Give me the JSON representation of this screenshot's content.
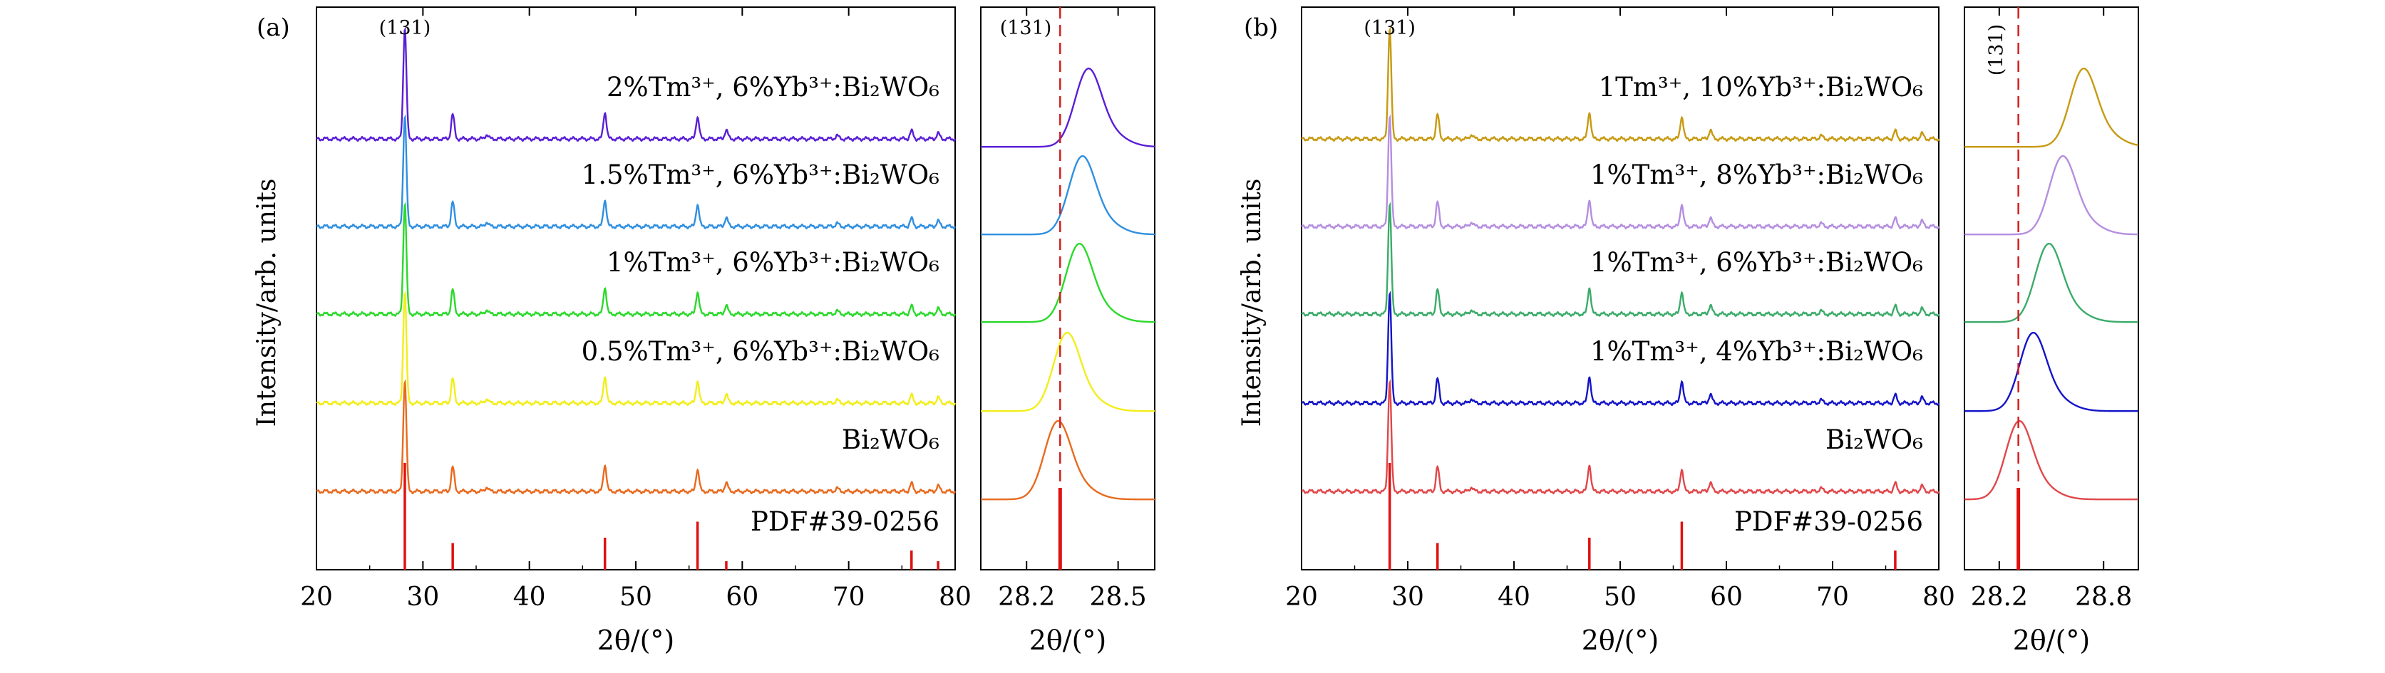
{
  "figure": {
    "ylabel": "Intensity/arb. units",
    "xlabel": "2θ/(°)"
  },
  "panels": [
    {
      "id": "a",
      "label": "(a)",
      "ref_label": "PDF#39-0256",
      "peak_label": "(131)",
      "main_xlim": [
        20,
        80
      ],
      "main_ticks": [
        20,
        30,
        40,
        50,
        60,
        70,
        80
      ],
      "zoom_xlim": [
        28.05,
        28.62
      ],
      "zoom_ticks": [
        28.2,
        28.5
      ],
      "zoom_ref_line": 28.31,
      "series": [
        {
          "name": "2%Tm³⁺, 6%Yb³⁺:Bi₂WO₆",
          "color": "#5a1ed6",
          "zoom_peak": 28.4
        },
        {
          "name": "1.5%Tm³⁺, 6%Yb³⁺:Bi₂WO₆",
          "color": "#2f8fe0",
          "zoom_peak": 28.38
        },
        {
          "name": "1%Tm³⁺, 6%Yb³⁺:Bi₂WO₆",
          "color": "#2bd92b",
          "zoom_peak": 28.37
        },
        {
          "name": "0.5%Tm³⁺, 6%Yb³⁺:Bi₂WO₆",
          "color": "#f2ee1a",
          "zoom_peak": 28.33
        },
        {
          "name": "Bi₂WO₆",
          "color": "#e86a1e",
          "zoom_peak": 28.3
        }
      ]
    },
    {
      "id": "b",
      "label": "(b)",
      "ref_label": "PDF#39-0256",
      "peak_label": "(131)",
      "main_xlim": [
        20,
        80
      ],
      "main_ticks": [
        20,
        30,
        40,
        50,
        60,
        70,
        80
      ],
      "zoom_xlim": [
        28.0,
        29.0
      ],
      "zoom_ticks": [
        28.2,
        28.8
      ],
      "zoom_ref_line": 28.31,
      "series": [
        {
          "name": "1Tm³⁺, 10%Yb³⁺:Bi₂WO₆",
          "color": "#c79a12",
          "zoom_peak": 28.68
        },
        {
          "name": "1%Tm³⁺, 8%Yb³⁺:Bi₂WO₆",
          "color": "#b58ee0",
          "zoom_peak": 28.56
        },
        {
          "name": "1%Tm³⁺, 6%Yb³⁺:Bi₂WO₆",
          "color": "#3bab6a",
          "zoom_peak": 28.48
        },
        {
          "name": "1%Tm³⁺, 4%Yb³⁺:Bi₂WO₆",
          "color": "#1414c8",
          "zoom_peak": 28.39
        },
        {
          "name": "Bi₂WO₆",
          "color": "#e0474a",
          "zoom_peak": 28.31
        }
      ]
    }
  ],
  "chart_data": [
    {
      "type": "line",
      "panel": "(a) main",
      "xlabel": "2θ/(°)",
      "ylabel": "Intensity/arb. units",
      "xlim": [
        20,
        80
      ],
      "reference": {
        "name": "PDF#39-0256",
        "peaks": [
          [
            28.3,
            1.0
          ],
          [
            32.8,
            0.25
          ],
          [
            47.1,
            0.3
          ],
          [
            55.8,
            0.45
          ],
          [
            58.5,
            0.08
          ],
          [
            75.9,
            0.18
          ],
          [
            78.4,
            0.08
          ]
        ]
      },
      "peak_positions": [
        28.3,
        32.8,
        36.0,
        47.1,
        55.8,
        58.5,
        68.9,
        75.9,
        78.4
      ],
      "series": [
        {
          "name": "2%Tm³⁺, 6%Yb³⁺:Bi₂WO₆"
        },
        {
          "name": "1.5%Tm³⁺, 6%Yb³⁺:Bi₂WO₆"
        },
        {
          "name": "1%Tm³⁺, 6%Yb³⁺:Bi₂WO₆"
        },
        {
          "name": "0.5%Tm³⁺, 6%Yb³⁺:Bi₂WO₆"
        },
        {
          "name": "Bi₂WO₆"
        }
      ]
    },
    {
      "type": "line",
      "panel": "(a) zoom",
      "xlabel": "2θ/(°)",
      "xlim": [
        28.05,
        28.62
      ],
      "annotation": "(131)",
      "series_peak_centers": [
        28.4,
        28.38,
        28.37,
        28.33,
        28.3
      ]
    },
    {
      "type": "line",
      "panel": "(b) main",
      "xlabel": "2θ/(°)",
      "ylabel": "Intensity/arb. units",
      "xlim": [
        20,
        80
      ],
      "reference": {
        "name": "PDF#39-0256",
        "peaks": [
          [
            28.3,
            1.0
          ],
          [
            32.8,
            0.25
          ],
          [
            47.1,
            0.3
          ],
          [
            55.8,
            0.45
          ],
          [
            75.9,
            0.18
          ]
        ]
      },
      "series": [
        {
          "name": "1Tm³⁺, 10%Yb³⁺:Bi₂WO₆"
        },
        {
          "name": "1%Tm³⁺, 8%Yb³⁺:Bi₂WO₆"
        },
        {
          "name": "1%Tm³⁺, 6%Yb³⁺:Bi₂WO₆"
        },
        {
          "name": "1%Tm³⁺, 4%Yb³⁺:Bi₂WO₆"
        },
        {
          "name": "Bi₂WO₆"
        }
      ]
    },
    {
      "type": "line",
      "panel": "(b) zoom",
      "xlabel": "2θ/(°)",
      "xlim": [
        28.0,
        29.0
      ],
      "annotation": "(131)",
      "series_peak_centers": [
        28.68,
        28.56,
        28.48,
        28.39,
        28.31
      ]
    }
  ]
}
